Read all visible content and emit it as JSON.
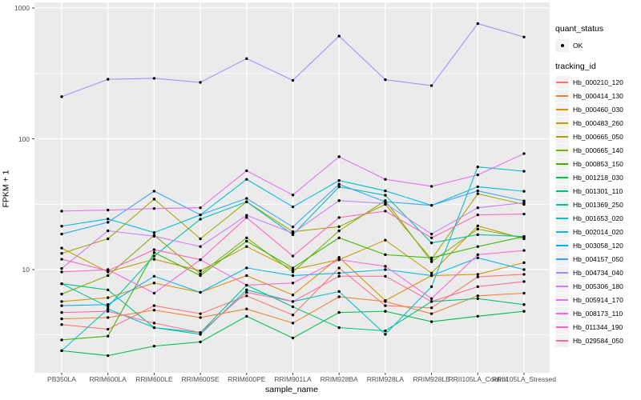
{
  "chart_data": {
    "type": "line",
    "title": "",
    "xlabel": "sample_name",
    "ylabel": "FPKM + 1",
    "y_scale": "log10",
    "y_ticks": [
      10,
      100,
      1000
    ],
    "y_tick_labels": [
      "10",
      "100",
      "1000"
    ],
    "y_minor_ticks": [
      3.1623,
      31.623,
      316.23
    ],
    "ylim": [
      1.65,
      1030
    ],
    "grid": true,
    "panel_bg": "#EBEBEB",
    "grid_color": "#FFFFFF",
    "point_color": "#000000",
    "axis_text_color": "#4D4D4D",
    "legend_position": "right",
    "legend": {
      "quant_status_title": "quant_status",
      "quant_status_items": [
        "OK"
      ],
      "tracking_id_title": "tracking_id"
    },
    "categories": [
      "PB350LA",
      "RRIM600LA",
      "RRIM600LE",
      "RRIM600SE",
      "RRIM600PE",
      "RRIM901LA",
      "RRIM928BA",
      "RRIM928LA",
      "RRIM928LE",
      "RRII105LA_Control",
      "RRII105LA_Stressed"
    ],
    "series": [
      {
        "name": "Hb_000210_120",
        "color": "#F8766D",
        "values": [
          3.8,
          3.5,
          5.3,
          4.6,
          6.3,
          4.5,
          10.3,
          5.3,
          5.1,
          8.8,
          9.2
        ]
      },
      {
        "name": "Hb_000414_130",
        "color": "#EA8331",
        "values": [
          4.2,
          4.3,
          4.9,
          4.3,
          5.0,
          3.9,
          6.2,
          5.7,
          4.6,
          6.3,
          6.6
        ]
      },
      {
        "name": "Hb_000460_030",
        "color": "#D89000",
        "values": [
          5.7,
          6.1,
          7.9,
          6.7,
          9.0,
          6.4,
          12.4,
          5.8,
          9.0,
          9.2,
          11.3
        ]
      },
      {
        "name": "Hb_000483_260",
        "color": "#C09B00",
        "values": [
          14.6,
          9.6,
          12.0,
          9.8,
          15.0,
          10.0,
          11.9,
          16.8,
          9.4,
          21.6,
          17.2
        ]
      },
      {
        "name": "Hb_000665_050",
        "color": "#A3A500",
        "values": [
          13.3,
          17.2,
          34.6,
          17.2,
          33.0,
          19.5,
          21.3,
          31.5,
          12.0,
          38.0,
          31.5
        ]
      },
      {
        "name": "Hb_000665_140",
        "color": "#7CAE00",
        "values": [
          6.5,
          9.0,
          18.3,
          9.3,
          17.5,
          9.6,
          19.8,
          33.7,
          11.5,
          20.4,
          17.5
        ]
      },
      {
        "name": "Hb_000853_150",
        "color": "#39B600",
        "values": [
          2.9,
          3.1,
          13.5,
          9.0,
          16.5,
          10.3,
          17.5,
          13.0,
          12.3,
          15.0,
          17.9
        ]
      },
      {
        "name": "Hb_001218_030",
        "color": "#00BB4E",
        "values": [
          2.4,
          2.2,
          2.6,
          2.8,
          4.4,
          3.0,
          4.7,
          4.8,
          4.0,
          4.4,
          4.8
        ]
      },
      {
        "name": "Hb_001301_110",
        "color": "#00BF7D",
        "values": [
          7.8,
          7.0,
          3.6,
          3.3,
          7.6,
          5.2,
          3.6,
          3.4,
          5.7,
          6.0,
          5.4
        ]
      },
      {
        "name": "Hb_001369_250",
        "color": "#00C1A3",
        "values": [
          7.8,
          5.2,
          12.7,
          24.3,
          33.0,
          18.5,
          43.0,
          37.0,
          16.0,
          18.5,
          17.9
        ]
      },
      {
        "name": "Hb_001653_020",
        "color": "#00BFC4",
        "values": [
          2.4,
          5.0,
          3.6,
          3.2,
          7.0,
          5.7,
          6.8,
          3.2,
          7.4,
          61.0,
          56.5
        ]
      },
      {
        "name": "Hb_002014_020",
        "color": "#00BAE0",
        "values": [
          21.5,
          24.4,
          19.2,
          26.2,
          49.0,
          30.2,
          48.0,
          40.0,
          31.0,
          43.0,
          39.7
        ]
      },
      {
        "name": "Hb_003058_120",
        "color": "#00B0F6",
        "values": [
          5.3,
          5.4,
          8.9,
          6.7,
          10.3,
          9.0,
          9.4,
          10.0,
          9.0,
          12.3,
          10.0
        ]
      },
      {
        "name": "Hb_004157_050",
        "color": "#35A2FF",
        "values": [
          18.7,
          23.0,
          39.8,
          26.2,
          35.0,
          21.2,
          45.0,
          33.0,
          31.0,
          40.0,
          33.5
        ]
      },
      {
        "name": "Hb_004734_040",
        "color": "#9590FF",
        "values": [
          210,
          285,
          290,
          270,
          410,
          280,
          610,
          283,
          255,
          760,
          600
        ]
      },
      {
        "name": "Hb_005306_180",
        "color": "#C77CFF",
        "values": [
          10.2,
          19.8,
          18.0,
          15.0,
          26.0,
          19.0,
          33.7,
          32.0,
          18.7,
          29.7,
          32.5
        ]
      },
      {
        "name": "Hb_005914_170",
        "color": "#E76BF3",
        "values": [
          28.0,
          28.5,
          29.3,
          29.7,
          57.0,
          37.2,
          73.0,
          49.0,
          43.3,
          53.0,
          77.0
        ]
      },
      {
        "name": "Hb_008173_110",
        "color": "#FA62DB",
        "values": [
          9.6,
          10.0,
          6.6,
          11.9,
          7.6,
          7.9,
          11.9,
          10.6,
          6.0,
          13.0,
          14.0
        ]
      },
      {
        "name": "Hb_011344_190",
        "color": "#FF62BC",
        "values": [
          12.0,
          9.8,
          14.2,
          11.9,
          25.0,
          12.7,
          25.0,
          28.0,
          17.5,
          26.2,
          26.6
        ]
      },
      {
        "name": "Hb_029584_050",
        "color": "#FF6A98",
        "values": [
          4.7,
          4.8,
          3.9,
          3.3,
          6.7,
          5.7,
          8.9,
          8.9,
          5.7,
          7.4,
          8.1
        ]
      }
    ]
  }
}
